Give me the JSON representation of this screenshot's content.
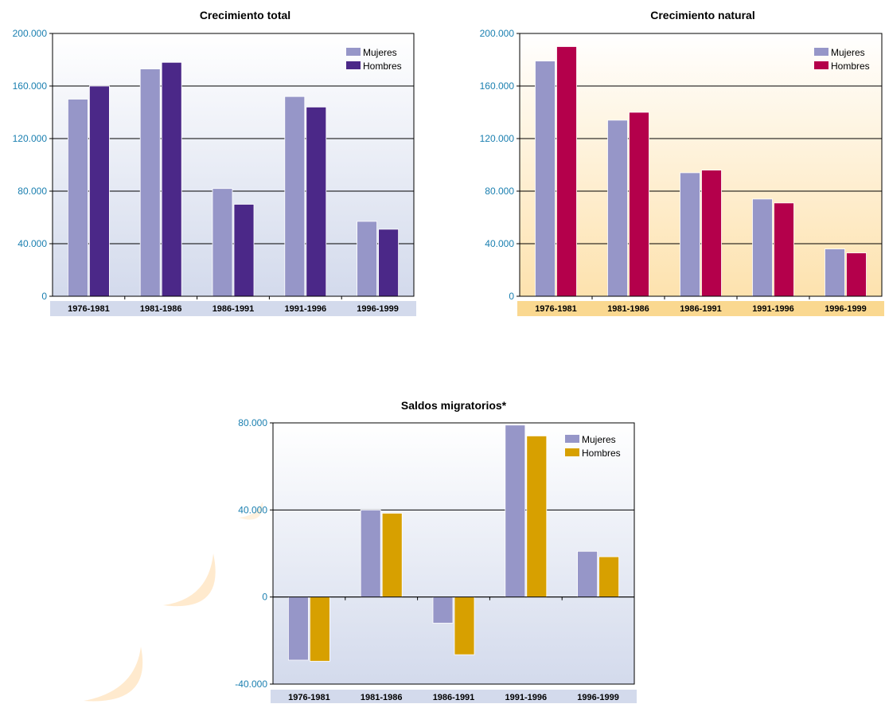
{
  "colors": {
    "mujeres": "#9696c8",
    "hombres_total": "#4b2888",
    "hombres_natural": "#b4004b",
    "hombres_migratorio": "#d7a000",
    "ytick": "#1a7fb0"
  },
  "chart_data": [
    {
      "type": "bar",
      "title": "Crecimiento total",
      "categories": [
        "1976-1981",
        "1981-1986",
        "1986-1991",
        "1991-1996",
        "1996-1999"
      ],
      "series": [
        {
          "name": "Mujeres",
          "values": [
            150000,
            173000,
            82000,
            152000,
            57000
          ]
        },
        {
          "name": "Hombres",
          "values": [
            160000,
            178000,
            70000,
            144000,
            51000
          ]
        }
      ],
      "ylim": [
        0,
        200000
      ],
      "yticks": [
        0,
        40000,
        80000,
        120000,
        160000,
        200000
      ],
      "ytick_labels": [
        "0",
        "40.000",
        "80.000",
        "120.000",
        "160.000",
        "200.000"
      ],
      "grid": true,
      "legend": "top-right"
    },
    {
      "type": "bar",
      "title": "Crecimiento natural",
      "categories": [
        "1976-1981",
        "1981-1986",
        "1986-1991",
        "1991-1996",
        "1996-1999"
      ],
      "series": [
        {
          "name": "Mujeres",
          "values": [
            179000,
            134000,
            94000,
            74000,
            36000
          ]
        },
        {
          "name": "Hombres",
          "values": [
            190000,
            140000,
            96000,
            71000,
            33000
          ]
        }
      ],
      "ylim": [
        0,
        200000
      ],
      "yticks": [
        0,
        40000,
        80000,
        120000,
        160000,
        200000
      ],
      "ytick_labels": [
        "0",
        "40.000",
        "80.000",
        "120.000",
        "160.000",
        "200.000"
      ],
      "grid": true,
      "legend": "top-right"
    },
    {
      "type": "bar",
      "title": "Saldos migratorios*",
      "categories": [
        "1976-1981",
        "1981-1986",
        "1986-1991",
        "1991-1996",
        "1996-1999"
      ],
      "series": [
        {
          "name": "Mujeres",
          "values": [
            -29000,
            40000,
            -12000,
            79000,
            21000
          ]
        },
        {
          "name": "Hombres",
          "values": [
            -29500,
            38500,
            -26500,
            74000,
            18500
          ]
        }
      ],
      "ylim": [
        -40000,
        80000
      ],
      "yticks": [
        -40000,
        0,
        40000,
        80000
      ],
      "ytick_labels": [
        "-40.000",
        "0",
        "40.000",
        "80.000"
      ],
      "grid": true,
      "legend": "top-right"
    }
  ]
}
